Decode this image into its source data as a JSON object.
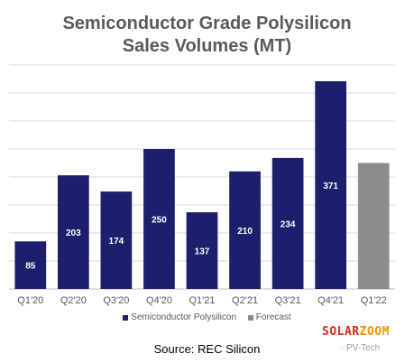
{
  "chart_data": {
    "type": "bar",
    "title_lines": [
      "Semiconductor Grade Polysilicon",
      "Sales Volumes (MT)"
    ],
    "categories": [
      "Q1'20",
      "Q2'20",
      "Q3'20",
      "Q4'20",
      "Q1'21",
      "Q2'21",
      "Q3'21",
      "Q4'21",
      "Q1'22"
    ],
    "series": [
      {
        "name": "Semiconductor Polysilicon",
        "color": "#1c1f6b",
        "values": [
          85,
          203,
          174,
          250,
          137,
          210,
          234,
          371,
          null
        ],
        "labels": [
          "85",
          "203",
          "174",
          "250",
          "137",
          "210",
          "234",
          "371",
          ""
        ]
      },
      {
        "name": "Forecast",
        "color": "#8c8c8c",
        "values": [
          null,
          null,
          null,
          null,
          null,
          null,
          null,
          null,
          225
        ],
        "labels": [
          "",
          "",
          "",
          "",
          "",
          "",
          "",
          "",
          ""
        ]
      }
    ],
    "ylim": [
      0,
      400
    ],
    "grid": true,
    "legend": "bottom",
    "ytick_labels_shown": false
  },
  "source_text": "Source: REC Silicon",
  "watermarks": {
    "solarzoom": [
      "SOLAR",
      "ZOOM"
    ],
    "solarzoom_colors": [
      "#e0261b",
      "#f29400"
    ],
    "pvtech": "PV-Tech"
  }
}
